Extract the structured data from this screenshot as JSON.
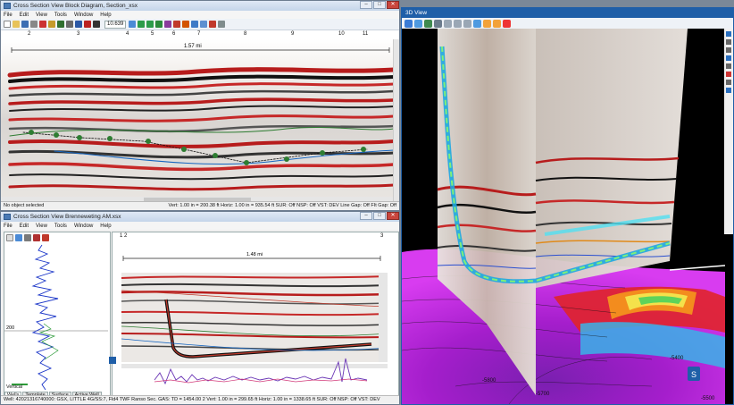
{
  "top_window": {
    "title": "Cross Section View Block Diagram, Section_xsx",
    "menu": [
      "File",
      "Edit",
      "View",
      "Tools",
      "Window",
      "Help"
    ],
    "zoom": "10.639",
    "ruler_ticks": [
      "2",
      "3",
      "4",
      "5",
      "6",
      "7",
      "8",
      "9",
      "10",
      "11"
    ],
    "scale_label": "1.57 mi",
    "status_left": "No object selected",
    "status_right": "Vert: 1.00 in = 200.38 ft   Horiz: 1.00 in = 935.54 ft   SUR: Off  NSP: Off   VST: DEV   Line Gap: Off   FIt Gap: Off"
  },
  "bottom_window": {
    "title": "Cross Section View Brenneweting AM.xsx",
    "menu": [
      "File",
      "Edit",
      "View",
      "Tools",
      "Window",
      "Help"
    ],
    "ruler_left": "1  2",
    "ruler_right": "3",
    "scale_label": "1.48 mi",
    "depth_label": "200",
    "panel_label": "Vertical",
    "tabs": [
      "Wells",
      "Template",
      "Surface",
      "Active Well"
    ],
    "status": "Well: 42021316740000: GSX, LITTLE 4G/SS:7, Fld4 TWF      Ranso   Sec.    GAS: TD = 1454.00    2   Vert: 1.00 in = 299.65 ft   Horiz: 1.00 in = 1338.65 ft   SUR: Off  NSP: Off   VST: DEV"
  },
  "view3d": {
    "title": "3D View",
    "contour_labels": [
      "-5800",
      "-5700",
      "-5400",
      "-5500"
    ],
    "marker_label": "S",
    "accent": "#1f5fa8"
  }
}
